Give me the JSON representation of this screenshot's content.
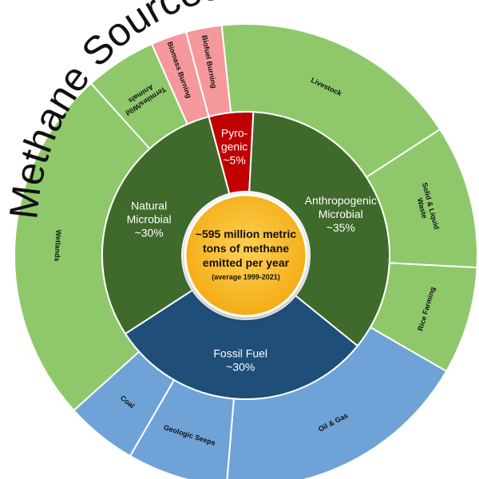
{
  "chart_data": {
    "type": "sunburst",
    "title": "Methane Sources",
    "center": {
      "lines": [
        "~595 million metric",
        "tons of methane",
        "emitted per year"
      ],
      "note": "(average 1999-2021)"
    },
    "inner": [
      {
        "id": "pyrogenic",
        "label_lines": [
          "Pyro-",
          "genic",
          "~5%"
        ],
        "value": 5,
        "color": "#c00000"
      },
      {
        "id": "anthropogenic",
        "label_lines": [
          "Anthropogenic",
          "Microbial",
          "~35%"
        ],
        "value": 35,
        "color": "#3f6a2b"
      },
      {
        "id": "fossil",
        "label_lines": [
          "Fossil Fuel",
          "~30%"
        ],
        "value": 30,
        "color": "#1f4e79"
      },
      {
        "id": "natural",
        "label_lines": [
          "Natural",
          "Microbial",
          "~30%"
        ],
        "value": 30,
        "color": "#3f6a2b"
      }
    ],
    "outer": [
      {
        "label_lines": [
          "Biofuel Burning"
        ],
        "parent": "pyrogenic",
        "value": 2.5,
        "color": "#f4989c"
      },
      {
        "label_lines": [
          "Livestock"
        ],
        "parent": "anthropogenic",
        "value": 17.5,
        "color": "#8fc86a"
      },
      {
        "label_lines": [
          "Solid & Liquid",
          "Waste"
        ],
        "parent": "anthropogenic",
        "value": 10,
        "color": "#8fc86a"
      },
      {
        "label_lines": [
          "Rice Farming"
        ],
        "parent": "anthropogenic",
        "value": 7.5,
        "color": "#8fc86a"
      },
      {
        "label_lines": [
          "Oil & Gas"
        ],
        "parent": "fossil",
        "value": 18,
        "color": "#6fa3d8"
      },
      {
        "label_lines": [
          "Geologic Seeps"
        ],
        "parent": "fossil",
        "value": 7,
        "color": "#6fa3d8"
      },
      {
        "label_lines": [
          "Coal"
        ],
        "parent": "fossil",
        "value": 5,
        "color": "#6fa3d8"
      },
      {
        "label_lines": [
          "Wetlands"
        ],
        "parent": "natural",
        "value": 25,
        "color": "#8fc86a"
      },
      {
        "label_lines": [
          "Termites/Wild",
          "Animals"
        ],
        "parent": "natural",
        "value": 5,
        "color": "#8fc86a"
      },
      {
        "label_lines": [
          "Biomass Burning"
        ],
        "parent": "pyrogenic",
        "value": 2.5,
        "color": "#f4989c"
      }
    ],
    "center_color": "#f9b520"
  }
}
